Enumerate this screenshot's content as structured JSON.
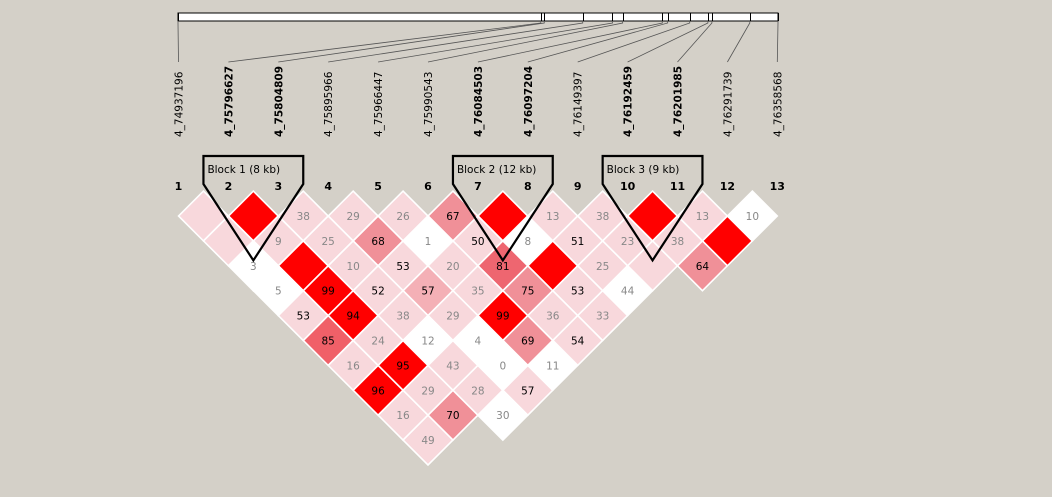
{
  "snps": [
    {
      "index": "1",
      "name": "4_74937196",
      "tagged": false
    },
    {
      "index": "2",
      "name": "4_75796627",
      "tagged": true
    },
    {
      "index": "3",
      "name": "4_75804809",
      "tagged": true
    },
    {
      "index": "4",
      "name": "4_75895966",
      "tagged": false
    },
    {
      "index": "5",
      "name": "4_75966447",
      "tagged": false
    },
    {
      "index": "6",
      "name": "4_75990543",
      "tagged": false
    },
    {
      "index": "7",
      "name": "4_76084503",
      "tagged": true
    },
    {
      "index": "8",
      "name": "4_76097204",
      "tagged": true
    },
    {
      "index": "9",
      "name": "4_76149397",
      "tagged": false
    },
    {
      "index": "10",
      "name": "4_76192459",
      "tagged": true
    },
    {
      "index": "11",
      "name": "4_76201985",
      "tagged": true
    },
    {
      "index": "12",
      "name": "4_76291739",
      "tagged": false
    },
    {
      "index": "13",
      "name": "4_76358568",
      "tagged": false
    }
  ],
  "blocks": [
    {
      "label": "Block 1 (8 kb)",
      "first_snp": 2,
      "last_snp": 3
    },
    {
      "label": "Block 2 (12 kb)",
      "first_snp": 7,
      "last_snp": 8
    },
    {
      "label": "Block 3 (9 kb)",
      "first_snp": 10,
      "last_snp": 11
    }
  ],
  "ld_cells": [
    {
      "i": 1,
      "j": 2,
      "value": "",
      "color": "#f8d8dc",
      "text_color": "#888888"
    },
    {
      "i": 2,
      "j": 3,
      "value": "",
      "color": "#ff0000",
      "text_color": "#888888"
    },
    {
      "i": 3,
      "j": 4,
      "value": "38",
      "color": "#f8d8dc",
      "text_color": "#888888"
    },
    {
      "i": 4,
      "j": 5,
      "value": "29",
      "color": "#f8d8dc",
      "text_color": "#888888"
    },
    {
      "i": 5,
      "j": 6,
      "value": "26",
      "color": "#f8d8dc",
      "text_color": "#888888"
    },
    {
      "i": 6,
      "j": 7,
      "value": "67",
      "color": "#f09098",
      "text_color": "#000000"
    },
    {
      "i": 7,
      "j": 8,
      "value": "",
      "color": "#ff0000",
      "text_color": "#888888"
    },
    {
      "i": 8,
      "j": 9,
      "value": "13",
      "color": "#f8d8dc",
      "text_color": "#888888"
    },
    {
      "i": 9,
      "j": 10,
      "value": "38",
      "color": "#f8d8dc",
      "text_color": "#888888"
    },
    {
      "i": 10,
      "j": 11,
      "value": "",
      "color": "#ff0000",
      "text_color": "#888888"
    },
    {
      "i": 11,
      "j": 12,
      "value": "13",
      "color": "#f8d8dc",
      "text_color": "#888888"
    },
    {
      "i": 12,
      "j": 13,
      "value": "10",
      "color": "#ffffff",
      "text_color": "#888888"
    },
    {
      "i": 1,
      "j": 3,
      "value": "",
      "color": "#f8d8dc",
      "text_color": "#888888"
    },
    {
      "i": 2,
      "j": 4,
      "value": "9",
      "color": "#f8d8dc",
      "text_color": "#888888"
    },
    {
      "i": 3,
      "j": 5,
      "value": "25",
      "color": "#f8d8dc",
      "text_color": "#888888"
    },
    {
      "i": 4,
      "j": 6,
      "value": "68",
      "color": "#f09098",
      "text_color": "#000000"
    },
    {
      "i": 5,
      "j": 7,
      "value": "1",
      "color": "#ffffff",
      "text_color": "#888888"
    },
    {
      "i": 6,
      "j": 8,
      "value": "50",
      "color": "#f8d8dc",
      "text_color": "#000000"
    },
    {
      "i": 7,
      "j": 9,
      "value": "8",
      "color": "#ffffff",
      "text_color": "#888888"
    },
    {
      "i": 8,
      "j": 10,
      "value": "51",
      "color": "#f8d8dc",
      "text_color": "#000000"
    },
    {
      "i": 9,
      "j": 11,
      "value": "23",
      "color": "#f8d8dc",
      "text_color": "#888888"
    },
    {
      "i": 10,
      "j": 12,
      "value": "38",
      "color": "#f8d8dc",
      "text_color": "#888888"
    },
    {
      "i": 11,
      "j": 13,
      "value": "",
      "color": "#ff0000",
      "text_color": "#888888"
    },
    {
      "i": 1,
      "j": 4,
      "value": "3",
      "color": "#ffffff",
      "text_color": "#888888"
    },
    {
      "i": 2,
      "j": 5,
      "value": "",
      "color": "#ff0000",
      "text_color": "#888888"
    },
    {
      "i": 3,
      "j": 6,
      "value": "10",
      "color": "#f8d8dc",
      "text_color": "#888888"
    },
    {
      "i": 4,
      "j": 7,
      "value": "53",
      "color": "#f8d8dc",
      "text_color": "#000000"
    },
    {
      "i": 5,
      "j": 8,
      "value": "20",
      "color": "#f8d8dc",
      "text_color": "#888888"
    },
    {
      "i": 6,
      "j": 9,
      "value": "81",
      "color": "#ee6670",
      "text_color": "#000000"
    },
    {
      "i": 7,
      "j": 10,
      "value": "",
      "color": "#ff0000",
      "text_color": "#888888"
    },
    {
      "i": 8,
      "j": 11,
      "value": "25",
      "color": "#f8d8dc",
      "text_color": "#888888"
    },
    {
      "i": 9,
      "j": 12,
      "value": "",
      "color": "#f8d8dc",
      "text_color": "#888888"
    },
    {
      "i": 10,
      "j": 13,
      "value": "64",
      "color": "#f09098",
      "text_color": "#000000"
    },
    {
      "i": 1,
      "j": 5,
      "value": "5",
      "color": "#ffffff",
      "text_color": "#888888"
    },
    {
      "i": 2,
      "j": 6,
      "value": "99",
      "color": "#ff0000",
      "text_color": "#000000"
    },
    {
      "i": 3,
      "j": 7,
      "value": "52",
      "color": "#f8d8dc",
      "text_color": "#000000"
    },
    {
      "i": 4,
      "j": 8,
      "value": "57",
      "color": "#f4b0b6",
      "text_color": "#000000"
    },
    {
      "i": 5,
      "j": 9,
      "value": "35",
      "color": "#f8d8dc",
      "text_color": "#888888"
    },
    {
      "i": 6,
      "j": 10,
      "value": "75",
      "color": "#f09098",
      "text_color": "#000000"
    },
    {
      "i": 7,
      "j": 11,
      "value": "53",
      "color": "#f8d8dc",
      "text_color": "#000000"
    },
    {
      "i": 8,
      "j": 12,
      "value": "44",
      "color": "#ffffff",
      "text_color": "#888888"
    },
    {
      "i": 1,
      "j": 6,
      "value": "53",
      "color": "#f8d8dc",
      "text_color": "#000000"
    },
    {
      "i": 2,
      "j": 7,
      "value": "94",
      "color": "#ff0000",
      "text_color": "#000000"
    },
    {
      "i": 3,
      "j": 8,
      "value": "38",
      "color": "#f8d8dc",
      "text_color": "#888888"
    },
    {
      "i": 4,
      "j": 9,
      "value": "29",
      "color": "#f8d8dc",
      "text_color": "#888888"
    },
    {
      "i": 5,
      "j": 10,
      "value": "99",
      "color": "#ff0000",
      "text_color": "#000000"
    },
    {
      "i": 6,
      "j": 11,
      "value": "36",
      "color": "#f8d8dc",
      "text_color": "#888888"
    },
    {
      "i": 7,
      "j": 12,
      "value": "33",
      "color": "#f8d8dc",
      "text_color": "#888888"
    },
    {
      "i": 1,
      "j": 7,
      "value": "85",
      "color": "#f06068",
      "text_color": "#000000"
    },
    {
      "i": 2,
      "j": 8,
      "value": "24",
      "color": "#f8d8dc",
      "text_color": "#888888"
    },
    {
      "i": 3,
      "j": 9,
      "value": "12",
      "color": "#ffffff",
      "text_color": "#888888"
    },
    {
      "i": 4,
      "j": 10,
      "value": "4",
      "color": "#ffffff",
      "text_color": "#888888"
    },
    {
      "i": 5,
      "j": 11,
      "value": "69",
      "color": "#f09098",
      "text_color": "#000000"
    },
    {
      "i": 6,
      "j": 12,
      "value": "54",
      "color": "#f8d8dc",
      "text_color": "#000000"
    },
    {
      "i": 1,
      "j": 8,
      "value": "16",
      "color": "#f8d8dc",
      "text_color": "#888888"
    },
    {
      "i": 2,
      "j": 9,
      "value": "95",
      "color": "#ff0000",
      "text_color": "#000000"
    },
    {
      "i": 3,
      "j": 10,
      "value": "43",
      "color": "#f8d8dc",
      "text_color": "#888888"
    },
    {
      "i": 4,
      "j": 11,
      "value": "0",
      "color": "#ffffff",
      "text_color": "#888888"
    },
    {
      "i": 5,
      "j": 12,
      "value": "11",
      "color": "#ffffff",
      "text_color": "#888888"
    },
    {
      "i": 1,
      "j": 9,
      "value": "96",
      "color": "#ff0000",
      "text_color": "#000000"
    },
    {
      "i": 2,
      "j": 10,
      "value": "29",
      "color": "#f8d8dc",
      "text_color": "#888888"
    },
    {
      "i": 3,
      "j": 11,
      "value": "28",
      "color": "#f8d8dc",
      "text_color": "#888888"
    },
    {
      "i": 4,
      "j": 12,
      "value": "57",
      "color": "#f8d8dc",
      "text_color": "#000000"
    },
    {
      "i": 1,
      "j": 10,
      "value": "16",
      "color": "#f8d8dc",
      "text_color": "#888888"
    },
    {
      "i": 2,
      "j": 11,
      "value": "70",
      "color": "#f09098",
      "text_color": "#000000"
    },
    {
      "i": 3,
      "j": 12,
      "value": "30",
      "color": "#ffffff",
      "text_color": "#888888"
    },
    {
      "i": 1,
      "j": 11,
      "value": "49",
      "color": "#f8d8dc",
      "text_color": "#888888"
    }
  ]
}
